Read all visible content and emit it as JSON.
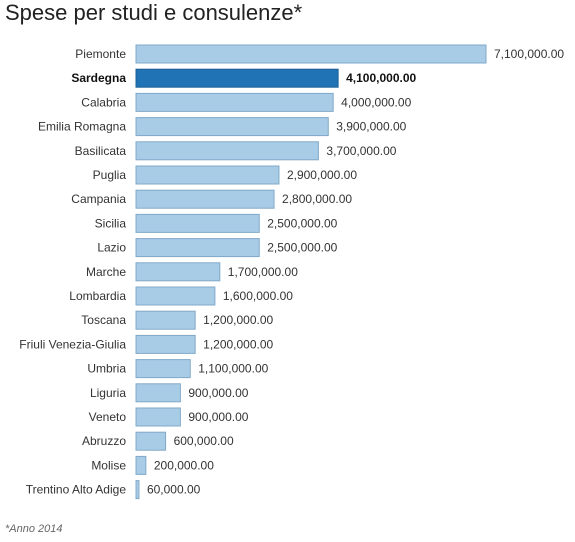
{
  "title": "Spese per studi e consulenze*",
  "footnote": "*Anno 2014",
  "colors": {
    "bar": "#a9cce6",
    "bar_stroke": "#7fa9c9",
    "highlight": "#2073b5",
    "highlight_stroke": "#1a5f96"
  },
  "chart_data": {
    "type": "bar",
    "orientation": "horizontal",
    "title": "Spese per studi e consulenze*",
    "categories": [
      "Piemonte",
      "Sardegna",
      "Calabria",
      "Emilia Romagna",
      "Basilicata",
      "Puglia",
      "Campania",
      "Sicilia",
      "Lazio",
      "Marche",
      "Lombardia",
      "Toscana",
      "Friuli Venezia-Giulia",
      "Umbria",
      "Liguria",
      "Veneto",
      "Abruzzo",
      "Molise",
      "Trentino Alto Adige"
    ],
    "values": [
      7100000,
      4100000,
      4000000,
      3900000,
      3700000,
      2900000,
      2800000,
      2500000,
      2500000,
      1700000,
      1600000,
      1200000,
      1200000,
      1100000,
      900000,
      900000,
      600000,
      200000,
      60000
    ],
    "value_labels": [
      "7,100,000.00",
      "4,100,000.00",
      "4,000,000.00",
      "3,900,000.00",
      "3,700,000.00",
      "2,900,000.00",
      "2,800,000.00",
      "2,500,000.00",
      "2,500,000.00",
      "1,700,000.00",
      "1,600,000.00",
      "1,200,000.00",
      "1,200,000.00",
      "1,100,000.00",
      "900,000.00",
      "900,000.00",
      "600,000.00",
      "200,000.00",
      "60,000.00"
    ],
    "highlight": "Sardegna",
    "xlim": [
      0,
      7100000
    ],
    "grid": false,
    "legend": "none"
  }
}
